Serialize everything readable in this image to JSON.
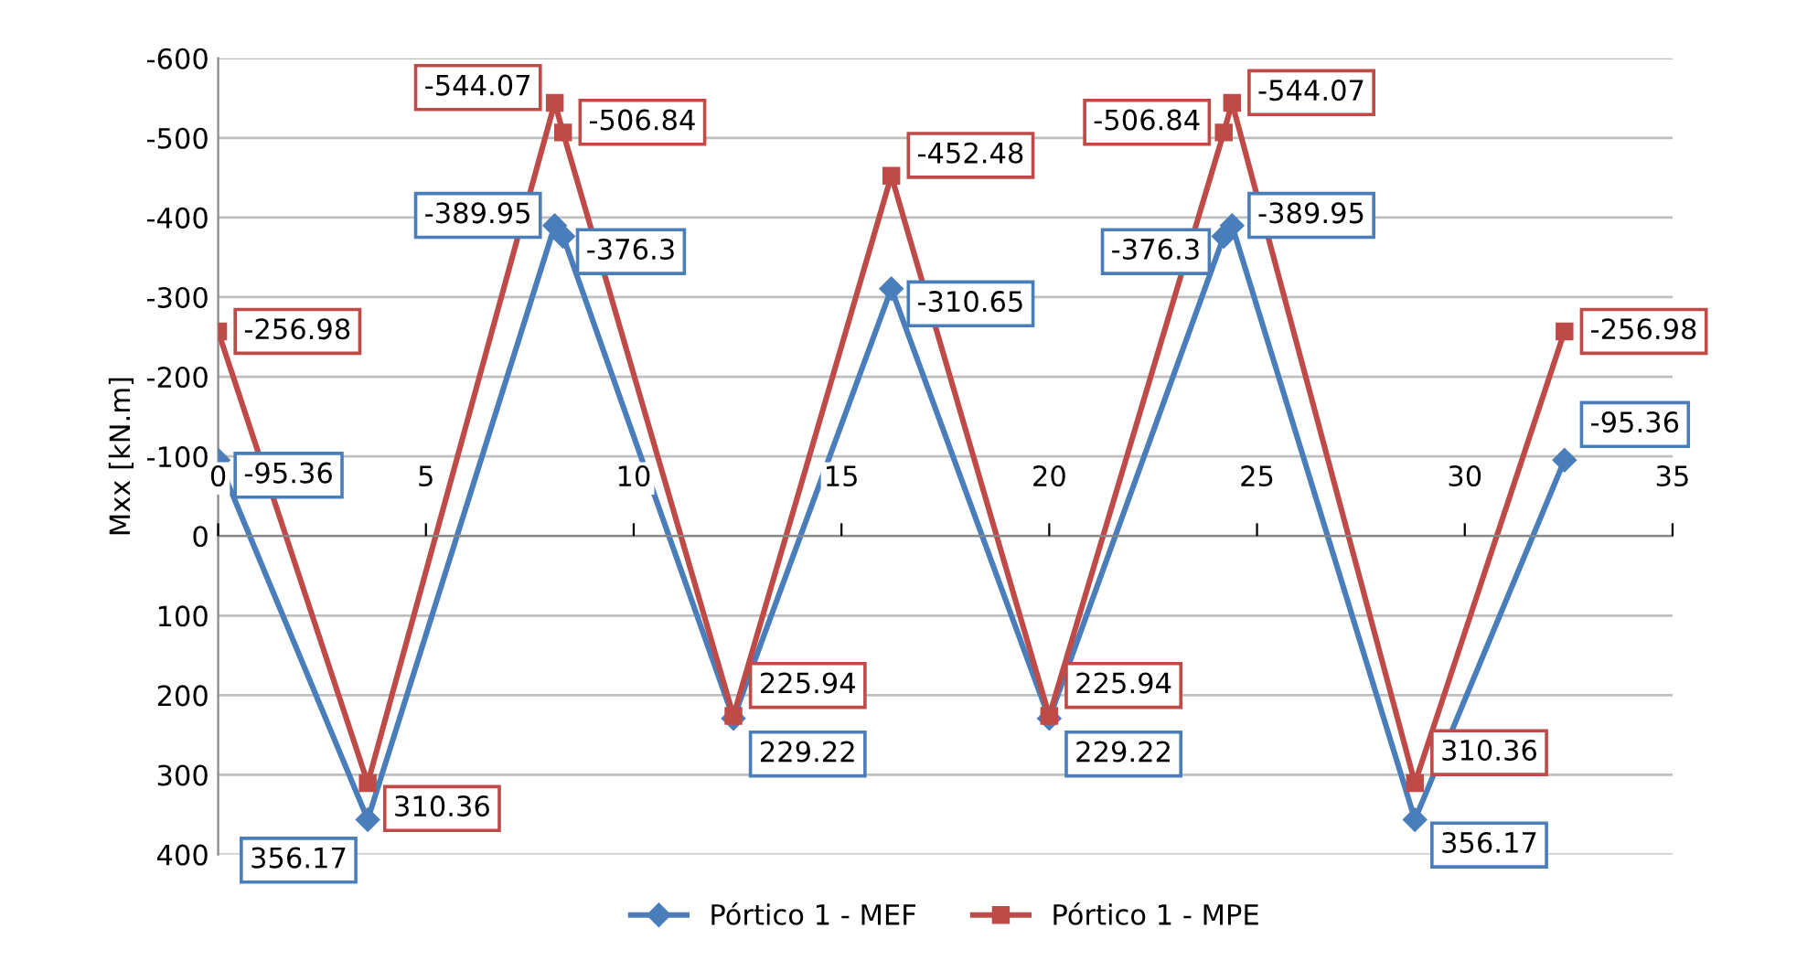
{
  "chart_data": {
    "type": "line",
    "ylabel": "Mxx [kN.m]",
    "xlim": [
      0,
      35
    ],
    "xticks": [
      0,
      5,
      10,
      15,
      20,
      25,
      30,
      35
    ],
    "ylim": [
      400,
      -600
    ],
    "yticks": [
      -600,
      -500,
      -400,
      -300,
      -200,
      -100,
      0,
      100,
      200,
      300,
      400
    ],
    "grid": "y",
    "legend": "bottom",
    "data_labels": true,
    "line_style": "solid",
    "series": [
      {
        "name": "Pórtico 1 - MEF",
        "color": "#4a7ebb",
        "marker": "diamond",
        "x": [
          0,
          3.6,
          8.1,
          8.3,
          12.4,
          16.2,
          20,
          24.2,
          24.4,
          28.8,
          32.4
        ],
        "values": [
          -95.36,
          356.17,
          -389.95,
          -376.3,
          229.22,
          -310.65,
          229.22,
          -376.3,
          -389.95,
          356.17,
          -95.36
        ]
      },
      {
        "name": "Pórtico 1 - MPE",
        "color": "#be4b48",
        "marker": "square",
        "x": [
          0,
          3.6,
          8.1,
          8.3,
          12.4,
          16.2,
          20,
          24.2,
          24.4,
          28.8,
          32.4
        ],
        "values": [
          -256.98,
          310.36,
          -544.07,
          -506.84,
          225.94,
          -452.48,
          225.94,
          -506.84,
          -544.07,
          310.36,
          -256.98
        ]
      }
    ]
  }
}
